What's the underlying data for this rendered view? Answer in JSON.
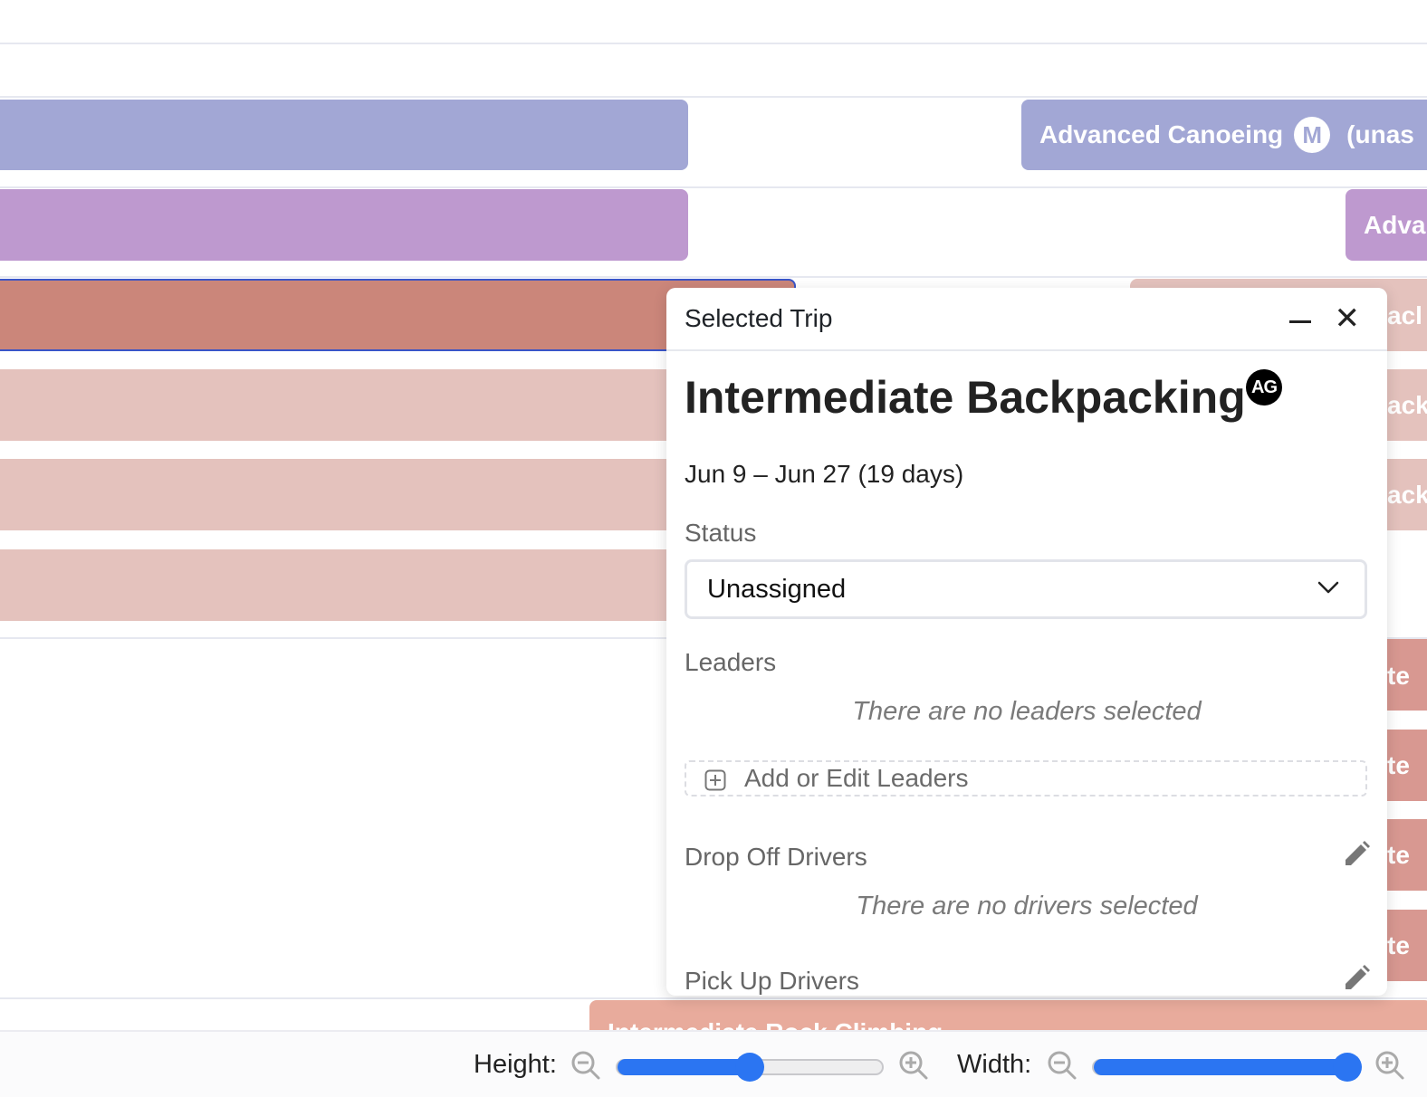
{
  "timeline": {
    "advanced_canoeing_label": "Advanced Canoeing",
    "badge_m": "M",
    "unassigned_partial": "(unas",
    "adva_partial": "Adva",
    "ack_partial": "acl",
    "ack_partial_2": "ack",
    "te_partial": "te",
    "bottom_partial": "Intermediate Rock Climbing",
    "colors": {
      "periwinkle": "#a2a7d5",
      "lavender": "#be99cf",
      "selected_red": "#cb867a",
      "light_pink": "#e4c2bd",
      "salmon": "#e8ab9c",
      "right_red": "#d89891"
    }
  },
  "panel": {
    "header_title": "Selected Trip",
    "minimize_icon": "minimize-icon",
    "close_icon": "✕",
    "trip_name": "Intermediate Backpacking",
    "trip_badge": "AG",
    "dates": "Jun 9 – Jun 27 (19 days)",
    "status_label": "Status",
    "status_value": "Unassigned",
    "leaders_label": "Leaders",
    "leaders_empty": "There are no leaders selected",
    "add_leaders": "Add or Edit Leaders",
    "dropoff_label": "Drop Off Drivers",
    "drivers_empty": "There are no drivers selected",
    "pickup_label": "Pick Up Drivers"
  },
  "controls": {
    "height_label": "Height:",
    "width_label": "Width:",
    "height_value": 0.5,
    "width_value": 0.96
  }
}
